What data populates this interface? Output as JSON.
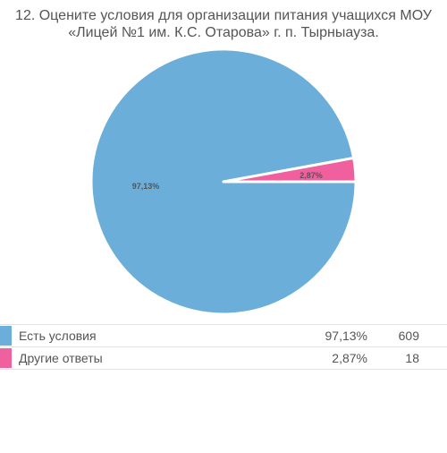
{
  "chart_data": {
    "type": "pie",
    "title_lines": [
      "12. Оцените условия для организации питания учащихся МОУ",
      "«Лицей №1 им. К.С. Отарова» г. п. Тырныауза."
    ],
    "slices": [
      {
        "label": "Есть условия",
        "percent_label": "97,13%",
        "percent": 97.13,
        "count": "609",
        "color": "#6aaed9"
      },
      {
        "label": "Другие ответы",
        "percent_label": "2,87%",
        "percent": 2.87,
        "count": "18",
        "color": "#f0609e"
      }
    ]
  }
}
